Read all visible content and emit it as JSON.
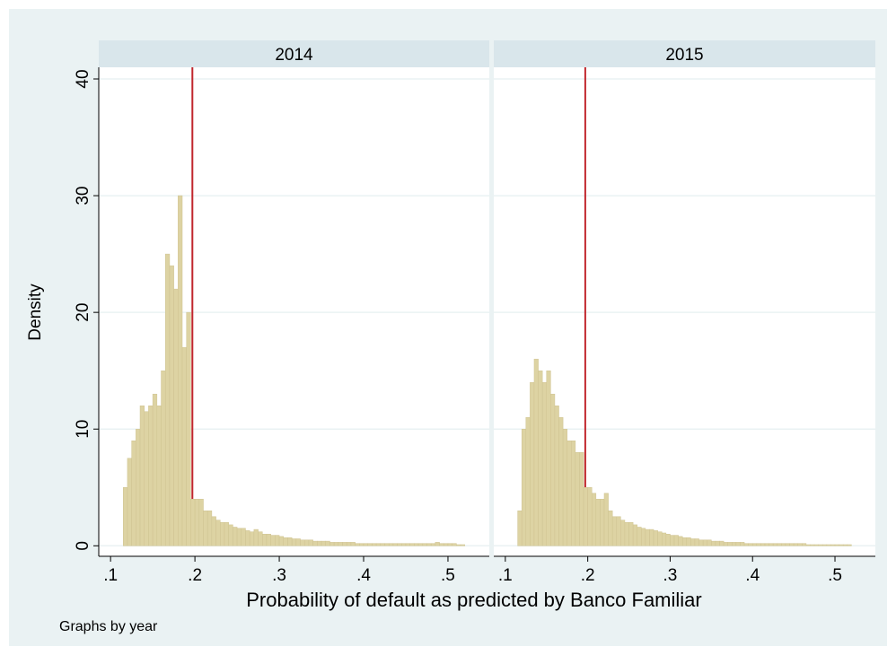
{
  "figure": {
    "ylabel": "Density",
    "xlabel": "Probability of default as predicted by Banco Familiar",
    "note": "Graphs by year"
  },
  "chart_data": [
    {
      "type": "histogram",
      "title": "2014",
      "color": "#ddd3a3",
      "vline": 0.197,
      "vline_color": "#c1272d",
      "grid": true,
      "bins": [
        0.115,
        0.12,
        0.125,
        0.13,
        0.135,
        0.14,
        0.145,
        0.15,
        0.155,
        0.16,
        0.165,
        0.17,
        0.175,
        0.18,
        0.185,
        0.19,
        0.195,
        0.2,
        0.205,
        0.21,
        0.215,
        0.22,
        0.225,
        0.23,
        0.235,
        0.24,
        0.245,
        0.25,
        0.255,
        0.26,
        0.265,
        0.27,
        0.275,
        0.28,
        0.285,
        0.29,
        0.295,
        0.3,
        0.305,
        0.31,
        0.315,
        0.32,
        0.325,
        0.33,
        0.335,
        0.34,
        0.345,
        0.35,
        0.355,
        0.36,
        0.365,
        0.37,
        0.375,
        0.38,
        0.385,
        0.39,
        0.395,
        0.4,
        0.405,
        0.41,
        0.415,
        0.42,
        0.425,
        0.43,
        0.435,
        0.44,
        0.445,
        0.45,
        0.455,
        0.46,
        0.465,
        0.47,
        0.475,
        0.48,
        0.485,
        0.49,
        0.495,
        0.5,
        0.505,
        0.51,
        0.515,
        0.52
      ],
      "values": [
        5,
        7.5,
        9,
        10,
        12,
        11.5,
        12,
        13,
        12,
        15,
        25,
        24,
        22,
        30,
        17,
        20,
        4,
        4,
        4,
        3,
        3,
        2.5,
        2.2,
        2,
        2,
        1.8,
        1.6,
        1.5,
        1.5,
        1.3,
        1.2,
        1.4,
        1.2,
        1.0,
        1,
        0.9,
        0.9,
        0.8,
        0.7,
        0.7,
        0.6,
        0.6,
        0.5,
        0.5,
        0.5,
        0.4,
        0.4,
        0.4,
        0.4,
        0.3,
        0.3,
        0.3,
        0.3,
        0.3,
        0.3,
        0.2,
        0.2,
        0.2,
        0.2,
        0.2,
        0.2,
        0.2,
        0.2,
        0.2,
        0.2,
        0.2,
        0.2,
        0.2,
        0.2,
        0.2,
        0.2,
        0.2,
        0.2,
        0.2,
        0.3,
        0.2,
        0.2,
        0.2,
        0.2,
        0.1,
        0.1
      ],
      "xlim": [
        0.086,
        0.549
      ],
      "ylim": [
        -0.9,
        41
      ],
      "xticks": [
        {
          "value": 0.1,
          "label": ".1"
        },
        {
          "value": 0.2,
          "label": ".2"
        },
        {
          "value": 0.3,
          "label": ".3"
        },
        {
          "value": 0.4,
          "label": ".4"
        },
        {
          "value": 0.5,
          "label": ".5"
        }
      ],
      "yticks": [
        0,
        10,
        20,
        30,
        40
      ]
    },
    {
      "type": "histogram",
      "title": "2015",
      "color": "#ddd3a3",
      "vline": 0.197,
      "vline_color": "#c1272d",
      "grid": true,
      "bins": [
        0.115,
        0.12,
        0.125,
        0.13,
        0.135,
        0.14,
        0.145,
        0.15,
        0.155,
        0.16,
        0.165,
        0.17,
        0.175,
        0.18,
        0.185,
        0.19,
        0.195,
        0.2,
        0.205,
        0.21,
        0.215,
        0.22,
        0.225,
        0.23,
        0.235,
        0.24,
        0.245,
        0.25,
        0.255,
        0.26,
        0.265,
        0.27,
        0.275,
        0.28,
        0.285,
        0.29,
        0.295,
        0.3,
        0.305,
        0.31,
        0.315,
        0.32,
        0.325,
        0.33,
        0.335,
        0.34,
        0.345,
        0.35,
        0.355,
        0.36,
        0.365,
        0.37,
        0.375,
        0.38,
        0.385,
        0.39,
        0.395,
        0.4,
        0.405,
        0.41,
        0.415,
        0.42,
        0.425,
        0.43,
        0.435,
        0.44,
        0.445,
        0.45,
        0.455,
        0.46,
        0.465,
        0.47,
        0.475,
        0.48,
        0.485,
        0.49,
        0.495,
        0.5,
        0.505,
        0.51,
        0.515,
        0.52
      ],
      "values": [
        3,
        10,
        11,
        14,
        16,
        15,
        14,
        15,
        13,
        12,
        11,
        10,
        9,
        9,
        8,
        8,
        5,
        5,
        4.5,
        4,
        4,
        4.5,
        3,
        2.5,
        2.5,
        2.2,
        2,
        2,
        1.8,
        1.6,
        1.5,
        1.4,
        1.4,
        1.3,
        1.2,
        1.1,
        1,
        0.9,
        0.9,
        0.8,
        0.7,
        0.7,
        0.6,
        0.6,
        0.5,
        0.5,
        0.5,
        0.4,
        0.4,
        0.4,
        0.3,
        0.3,
        0.3,
        0.3,
        0.3,
        0.2,
        0.2,
        0.2,
        0.2,
        0.2,
        0.2,
        0.2,
        0.2,
        0.2,
        0.2,
        0.2,
        0.2,
        0.2,
        0.2,
        0.2,
        0.1,
        0.1,
        0.1,
        0.1,
        0.1,
        0.1,
        0.1,
        0.1,
        0.1,
        0.1,
        0.1
      ],
      "xlim": [
        0.086,
        0.549
      ],
      "ylim": [
        -0.9,
        41
      ],
      "xticks": [
        {
          "value": 0.1,
          "label": ".1"
        },
        {
          "value": 0.2,
          "label": ".2"
        },
        {
          "value": 0.3,
          "label": ".3"
        },
        {
          "value": 0.4,
          "label": ".4"
        },
        {
          "value": 0.5,
          "label": ".5"
        }
      ],
      "yticks": [
        0,
        10,
        20,
        30,
        40
      ]
    }
  ]
}
